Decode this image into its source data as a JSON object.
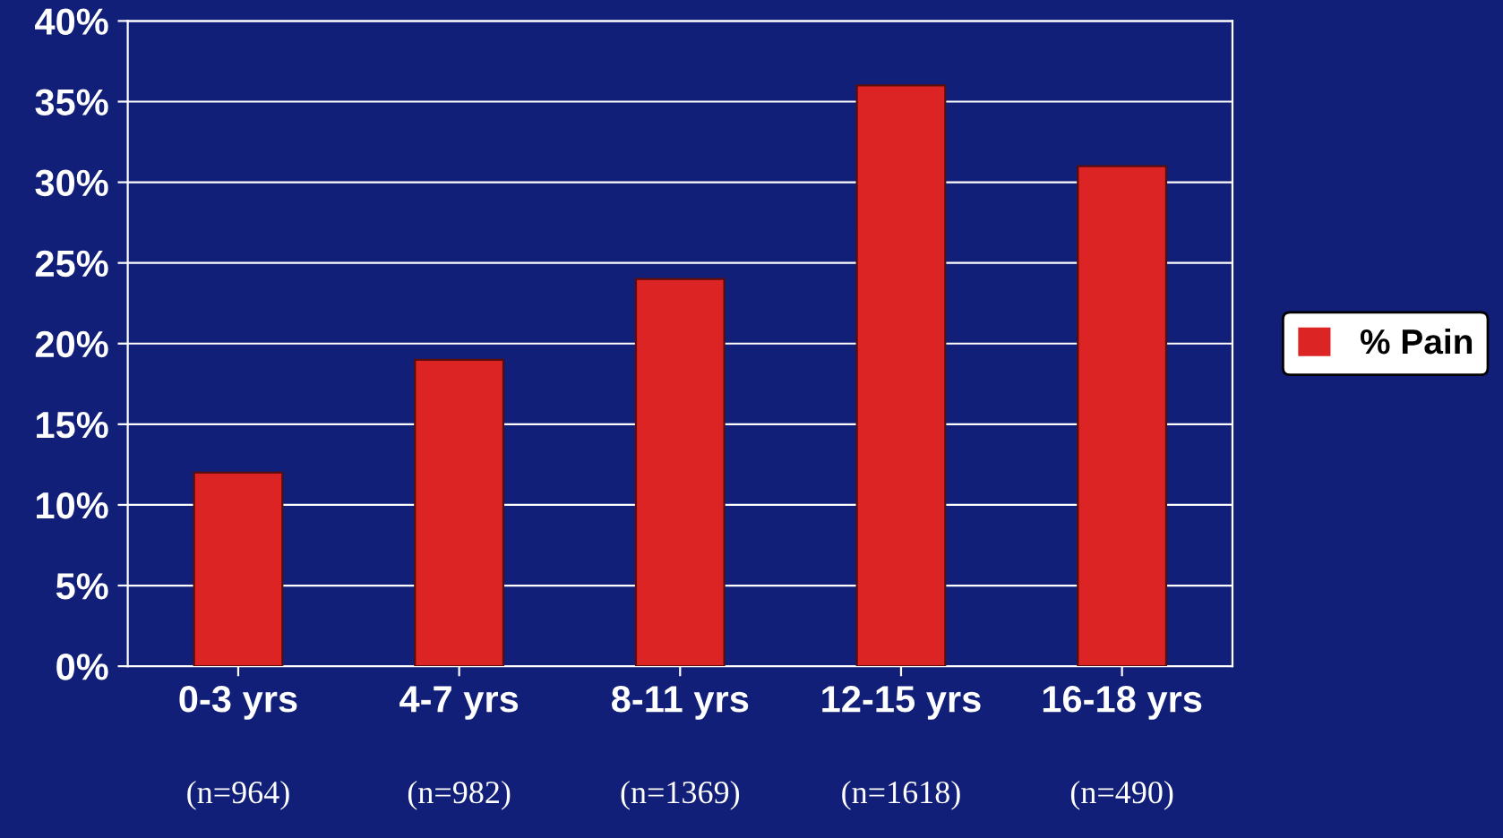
{
  "chart_data": {
    "type": "bar",
    "categories": [
      "0-3 yrs",
      "4-7 yrs",
      "8-11 yrs",
      "12-15 yrs",
      "16-18 yrs"
    ],
    "series": [
      {
        "name": "% Pain",
        "color": "#dd2424",
        "values": [
          12,
          19,
          24,
          36,
          31
        ]
      }
    ],
    "ylim": [
      0,
      40
    ],
    "yticks": [
      {
        "value": 0,
        "label": "0%"
      },
      {
        "value": 5,
        "label": "5%"
      },
      {
        "value": 10,
        "label": "10%"
      },
      {
        "value": 15,
        "label": "15%"
      },
      {
        "value": 20,
        "label": "20%"
      },
      {
        "value": 25,
        "label": "25%"
      },
      {
        "value": 30,
        "label": "30%"
      },
      {
        "value": 35,
        "label": "35%"
      },
      {
        "value": 40,
        "label": "40%"
      }
    ],
    "grid": "y",
    "legend": "right",
    "annotations": [
      "(n=964)",
      "(n=982)",
      "(n=1369)",
      "(n=1618)",
      "(n=490)"
    ]
  }
}
